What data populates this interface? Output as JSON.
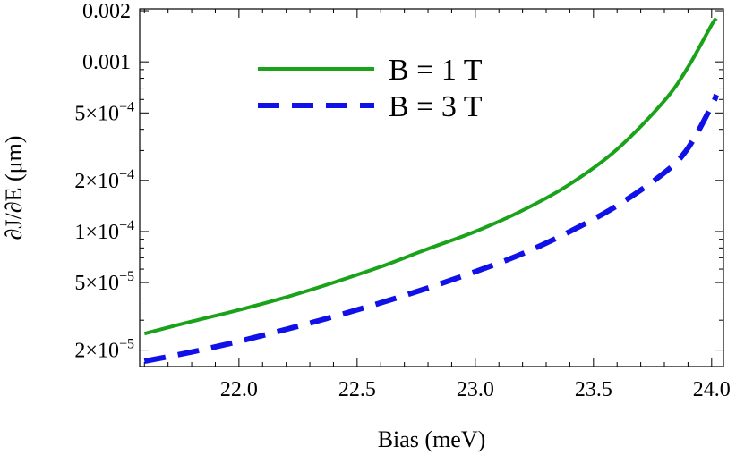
{
  "chart_data": {
    "type": "line",
    "title": "",
    "xlabel": "Bias (meV)",
    "ylabel": "∂J/∂E (μm)",
    "y_scale": "log",
    "xlim": [
      21.58,
      24.05
    ],
    "ylim": [
      1.6e-05,
      0.00205
    ],
    "x_ticks": [
      {
        "value": 22.0,
        "label": "22.0"
      },
      {
        "value": 22.5,
        "label": "22.5"
      },
      {
        "value": 23.0,
        "label": "23.0"
      },
      {
        "value": 23.5,
        "label": "23.5"
      },
      {
        "value": 24.0,
        "label": "24.0"
      }
    ],
    "y_ticks": [
      {
        "value": 0.002,
        "label": "0.002"
      },
      {
        "value": 0.001,
        "label": "0.001"
      },
      {
        "value": 0.0005,
        "label": "5×10",
        "exp": "−4"
      },
      {
        "value": 0.0002,
        "label": "2×10",
        "exp": "−4"
      },
      {
        "value": 0.0001,
        "label": "1×10",
        "exp": "−4"
      },
      {
        "value": 5e-05,
        "label": "5×10",
        "exp": "−5"
      },
      {
        "value": 2e-05,
        "label": "2×10",
        "exp": "−5"
      }
    ],
    "legend_position": "top-center",
    "series": [
      {
        "name": "B = 1 T",
        "color": "#1aa31a",
        "dash": "solid",
        "x": [
          21.6,
          21.8,
          22.0,
          22.2,
          22.4,
          22.6,
          22.8,
          23.0,
          23.2,
          23.4,
          23.6,
          23.8,
          23.9,
          24.0,
          24.02
        ],
        "values": [
          2.5e-05,
          2.95e-05,
          3.45e-05,
          4.1e-05,
          5e-05,
          6.2e-05,
          7.9e-05,
          0.0001,
          0.000133,
          0.00019,
          0.000305,
          0.00059,
          0.00093,
          0.00165,
          0.0018
        ]
      },
      {
        "name": "B = 3 T",
        "color": "#1010e8",
        "dash": "dashed",
        "x": [
          21.6,
          21.8,
          22.0,
          22.2,
          22.4,
          22.6,
          22.8,
          23.0,
          23.2,
          23.4,
          23.6,
          23.8,
          23.9,
          24.0,
          24.02
        ],
        "values": [
          1.72e-05,
          1.95e-05,
          2.25e-05,
          2.65e-05,
          3.15e-05,
          3.8e-05,
          4.65e-05,
          5.8e-05,
          7.4e-05,
          0.0001,
          0.000142,
          0.000222,
          0.00031,
          0.00055,
          0.00064
        ]
      }
    ]
  }
}
